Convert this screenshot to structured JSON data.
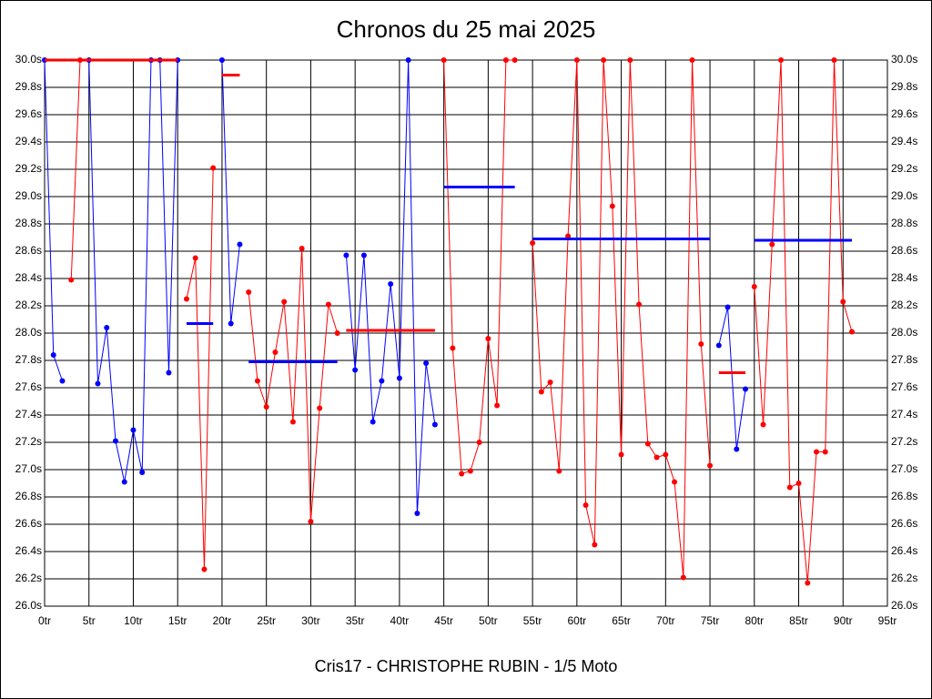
{
  "chart_data": {
    "type": "line",
    "title": "Chronos du 25 mai 2025",
    "caption": "Cris17 - CHRISTOPHE RUBIN - 1/5 Moto",
    "xlim": [
      0,
      95
    ],
    "ylim": [
      26.0,
      30.0
    ],
    "grid": true,
    "right_axis": true,
    "xticks": [
      {
        "value": 0,
        "label": "0tr"
      },
      {
        "value": 5,
        "label": "5tr"
      },
      {
        "value": 10,
        "label": "10tr"
      },
      {
        "value": 15,
        "label": "15tr"
      },
      {
        "value": 20,
        "label": "20tr"
      },
      {
        "value": 25,
        "label": "25tr"
      },
      {
        "value": 30,
        "label": "30tr"
      },
      {
        "value": 35,
        "label": "35tr"
      },
      {
        "value": 40,
        "label": "40tr"
      },
      {
        "value": 45,
        "label": "45tr"
      },
      {
        "value": 50,
        "label": "50tr"
      },
      {
        "value": 55,
        "label": "55tr"
      },
      {
        "value": 60,
        "label": "60tr"
      },
      {
        "value": 65,
        "label": "65tr"
      },
      {
        "value": 70,
        "label": "70tr"
      },
      {
        "value": 75,
        "label": "75tr"
      },
      {
        "value": 80,
        "label": "80tr"
      },
      {
        "value": 85,
        "label": "85tr"
      },
      {
        "value": 90,
        "label": "90tr"
      },
      {
        "value": 95,
        "label": "95tr"
      }
    ],
    "yticks": [
      {
        "value": 26.0,
        "label": "26.0s"
      },
      {
        "value": 26.2,
        "label": "26.2s"
      },
      {
        "value": 26.4,
        "label": "26.4s"
      },
      {
        "value": 26.6,
        "label": "26.6s"
      },
      {
        "value": 26.8,
        "label": "26.8s"
      },
      {
        "value": 27.0,
        "label": "27.0s"
      },
      {
        "value": 27.2,
        "label": "27.2s"
      },
      {
        "value": 27.4,
        "label": "27.4s"
      },
      {
        "value": 27.6,
        "label": "27.6s"
      },
      {
        "value": 27.8,
        "label": "27.8s"
      },
      {
        "value": 28.0,
        "label": "28.0s"
      },
      {
        "value": 28.2,
        "label": "28.2s"
      },
      {
        "value": 28.4,
        "label": "28.4s"
      },
      {
        "value": 28.6,
        "label": "28.6s"
      },
      {
        "value": 28.8,
        "label": "28.8s"
      },
      {
        "value": 29.0,
        "label": "29.0s"
      },
      {
        "value": 29.2,
        "label": "29.2s"
      },
      {
        "value": 29.4,
        "label": "29.4s"
      },
      {
        "value": 29.6,
        "label": "29.6s"
      },
      {
        "value": 29.8,
        "label": "29.8s"
      },
      {
        "value": 30.0,
        "label": "30.0s"
      }
    ],
    "series": [
      {
        "color": "#0000ff",
        "x": [
          0,
          1,
          2
        ],
        "values": [
          30.0,
          27.84,
          27.65
        ]
      },
      {
        "color": "#ff0000",
        "x": [
          3,
          4
        ],
        "values": [
          28.39,
          30.0
        ]
      },
      {
        "color": "#0000ff",
        "x": [
          5,
          6,
          7,
          8,
          9,
          10,
          11,
          12,
          13,
          14,
          15
        ],
        "values": [
          30.0,
          27.63,
          28.04,
          27.21,
          26.91,
          27.29,
          26.98,
          30.0,
          30.0,
          27.71,
          30.0
        ]
      },
      {
        "color": "#ff0000",
        "x": [
          16,
          17,
          18,
          19
        ],
        "values": [
          28.25,
          28.55,
          26.27,
          29.21
        ]
      },
      {
        "color": "#0000ff",
        "x": [
          20,
          21,
          22
        ],
        "values": [
          30.0,
          28.07,
          28.65
        ]
      },
      {
        "color": "#ff0000",
        "x": [
          23,
          24,
          25,
          26,
          27,
          28,
          29,
          30,
          31,
          32,
          33
        ],
        "values": [
          28.3,
          27.65,
          27.46,
          27.86,
          28.23,
          27.35,
          28.62,
          26.62,
          27.45,
          28.21,
          28.0
        ]
      },
      {
        "color": "#0000ff",
        "x": [
          34,
          35,
          36,
          37,
          38,
          39,
          40,
          41,
          42,
          43,
          44
        ],
        "values": [
          28.57,
          27.73,
          28.57,
          27.35,
          27.65,
          28.36,
          27.67,
          30.0,
          26.68,
          27.78,
          27.33
        ]
      },
      {
        "color": "#ff0000",
        "x": [
          45,
          46,
          47,
          48,
          49,
          50,
          51,
          52,
          53
        ],
        "values": [
          30.0,
          27.89,
          26.97,
          26.99,
          27.2,
          27.96,
          27.47,
          30.0,
          30.0
        ]
      },
      {
        "color": "#ff0000",
        "x": [
          55,
          56,
          57,
          58,
          59,
          60,
          61,
          62,
          63,
          64,
          65,
          66,
          67,
          68,
          69,
          70,
          71,
          72,
          73,
          74,
          75
        ],
        "values": [
          28.66,
          27.57,
          27.64,
          26.99,
          28.71,
          30.0,
          26.74,
          26.45,
          30.0,
          28.93,
          27.11,
          30.0,
          28.21,
          27.19,
          27.09,
          27.11,
          26.91,
          26.21,
          30.0,
          27.92,
          27.03
        ]
      },
      {
        "color": "#0000ff",
        "x": [
          76,
          77,
          78,
          79
        ],
        "values": [
          27.91,
          28.19,
          27.15,
          27.59
        ]
      },
      {
        "color": "#ff0000",
        "x": [
          80,
          81,
          82,
          83,
          84,
          85,
          86,
          87,
          88,
          89,
          90,
          91
        ],
        "values": [
          28.34,
          27.33,
          28.65,
          30.0,
          26.87,
          26.9,
          26.17,
          27.13,
          27.13,
          30.0,
          28.23,
          28.01
        ]
      }
    ],
    "averages": [
      {
        "color": "#ff0000",
        "x": [
          0,
          15
        ],
        "value": 30.0
      },
      {
        "color": "#0000ff",
        "x": [
          16,
          19
        ],
        "value": 28.07
      },
      {
        "color": "#ff0000",
        "x": [
          20,
          22
        ],
        "value": 29.89
      },
      {
        "color": "#0000ff",
        "x": [
          23,
          33
        ],
        "value": 27.79
      },
      {
        "color": "#ff0000",
        "x": [
          34,
          44
        ],
        "value": 28.02
      },
      {
        "color": "#0000ff",
        "x": [
          45,
          53
        ],
        "value": 29.07
      },
      {
        "color": "#0000ff",
        "x": [
          55,
          75
        ],
        "value": 28.69
      },
      {
        "color": "#ff0000",
        "x": [
          76,
          79
        ],
        "value": 27.71
      },
      {
        "color": "#0000ff",
        "x": [
          80,
          91
        ],
        "value": 28.68
      }
    ]
  }
}
